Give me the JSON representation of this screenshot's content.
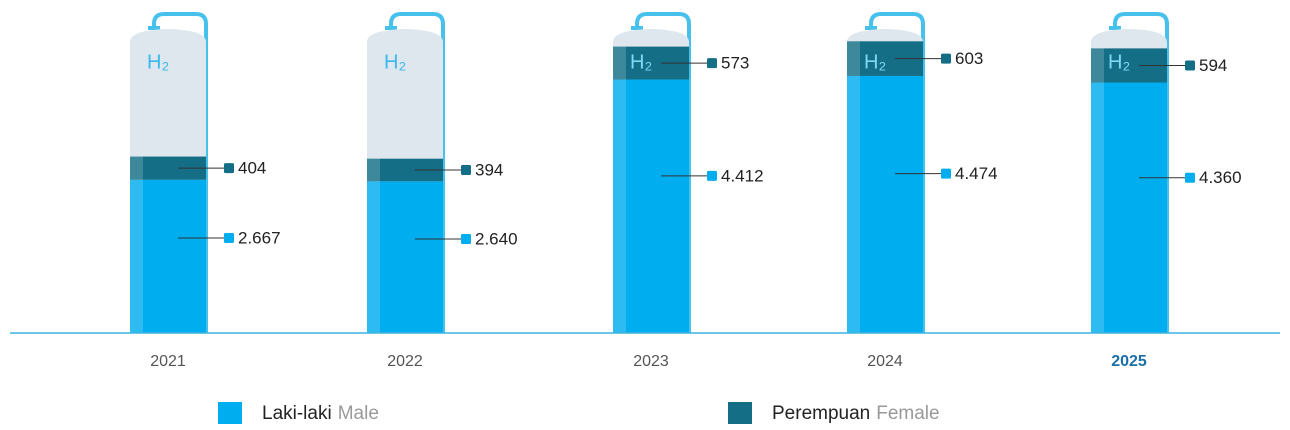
{
  "chart_data": {
    "type": "bar",
    "stacked": true,
    "categories": [
      "2021",
      "2022",
      "2023",
      "2024",
      "2025"
    ],
    "highlight_index": 4,
    "highlight_color": "#1a6fa8",
    "tank_label": "H₂",
    "ylim": [
      0,
      5100
    ],
    "series": [
      {
        "name": "Laki-laki",
        "translation": "Male",
        "color": "#00adef",
        "values": [
          2667,
          2640,
          4412,
          4474,
          4360
        ],
        "value_labels": [
          "2.667",
          "2.640",
          "4.412",
          "4.474",
          "4.360"
        ]
      },
      {
        "name": "Perempuan",
        "translation": "Female",
        "color": "#146e86",
        "values": [
          404,
          394,
          573,
          603,
          594
        ],
        "value_labels": [
          "404",
          "394",
          "573",
          "603",
          "594"
        ]
      }
    ]
  }
}
